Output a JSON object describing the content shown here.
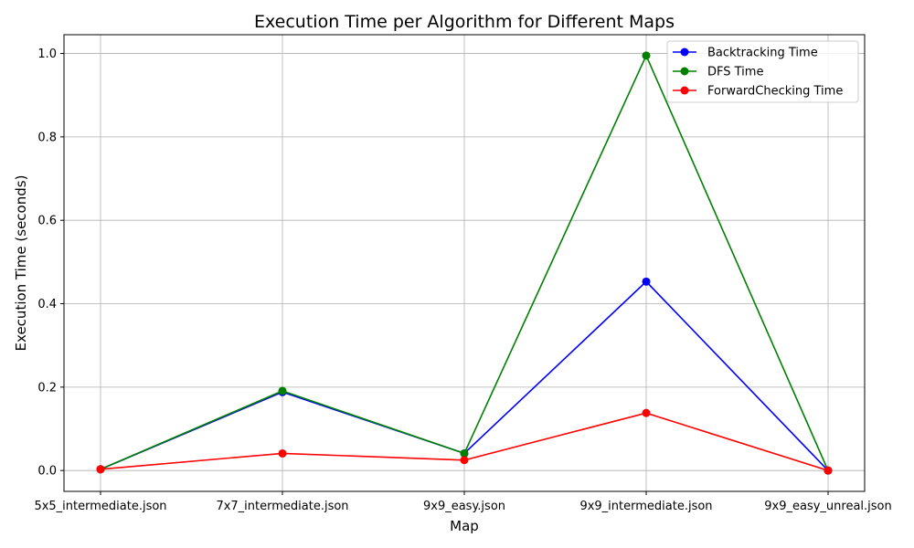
{
  "chart_data": {
    "type": "line",
    "title": "Execution Time per Algorithm for Different Maps",
    "xlabel": "Map",
    "ylabel": "Execution Time (seconds)",
    "categories": [
      "5x5_intermediate.json",
      "7x7_intermediate.json",
      "9x9_easy.json",
      "9x9_intermediate.json",
      "9x9_easy_unreal.json"
    ],
    "ylim": [
      -0.05,
      1.045
    ],
    "yticks": [
      "0.0",
      "0.2",
      "0.4",
      "0.6",
      "0.8",
      "1.0"
    ],
    "grid": true,
    "legend_position": "top-right",
    "series": [
      {
        "name": "Backtracking Time",
        "color": "#0000ff",
        "marker": "circle",
        "values": [
          0.003,
          0.188,
          0.041,
          0.453,
          0.0
        ]
      },
      {
        "name": "DFS Time",
        "color": "#008000",
        "marker": "circle",
        "values": [
          0.003,
          0.191,
          0.041,
          0.995,
          0.0
        ]
      },
      {
        "name": "ForwardChecking Time",
        "color": "#ff0000",
        "marker": "circle",
        "values": [
          0.003,
          0.041,
          0.025,
          0.138,
          0.0
        ]
      }
    ]
  }
}
